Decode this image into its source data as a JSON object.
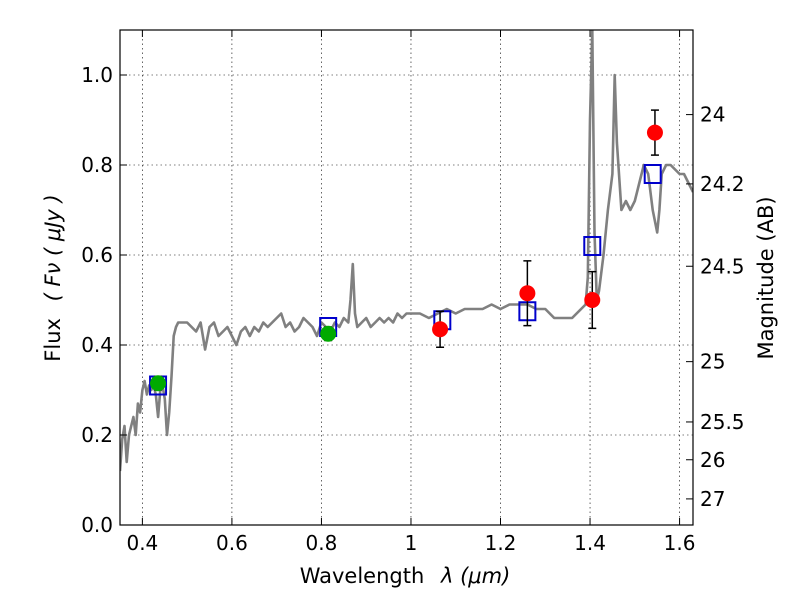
{
  "chart_data": {
    "type": "scatter",
    "xlabel_text": "Wavelength",
    "xlabel_math": "λ (μm)",
    "ylabel_text": "Flux",
    "ylabel_math": "( Fν ( μJy )",
    "y2label": "Magnitude (AB)",
    "xlim": [
      0.35,
      1.63
    ],
    "ylim": [
      0.0,
      1.1
    ],
    "grid": true,
    "xticks": [
      0.4,
      0.6,
      0.8,
      1.0,
      1.2,
      1.4,
      1.6
    ],
    "xtick_labels": [
      "0.4",
      "0.6",
      "0.8",
      "1",
      "1.2",
      "1.4",
      "1.6"
    ],
    "yticks": [
      0.0,
      0.2,
      0.4,
      0.6,
      0.8,
      1.0
    ],
    "ytick_labels": [
      "0.0",
      "0.2",
      "0.4",
      "0.6",
      "0.8",
      "1.0"
    ],
    "y2ticks": [
      {
        "label": "24",
        "flux": 0.912
      },
      {
        "label": "24.2",
        "flux": 0.758
      },
      {
        "label": "24.5",
        "flux": 0.575
      },
      {
        "label": "25",
        "flux": 0.363
      },
      {
        "label": "25.5",
        "flux": 0.229
      },
      {
        "label": "26",
        "flux": 0.145
      },
      {
        "label": "27",
        "flux": 0.058
      }
    ],
    "series": [
      {
        "kind": "line",
        "color": "#808080",
        "x": [
          0.35,
          0.355,
          0.36,
          0.365,
          0.37,
          0.375,
          0.38,
          0.385,
          0.39,
          0.395,
          0.4,
          0.405,
          0.41,
          0.415,
          0.42,
          0.425,
          0.43,
          0.435,
          0.44,
          0.445,
          0.45,
          0.455,
          0.46,
          0.465,
          0.47,
          0.475,
          0.48,
          0.49,
          0.5,
          0.51,
          0.52,
          0.53,
          0.54,
          0.55,
          0.56,
          0.57,
          0.58,
          0.59,
          0.6,
          0.61,
          0.62,
          0.63,
          0.64,
          0.65,
          0.66,
          0.67,
          0.68,
          0.69,
          0.7,
          0.71,
          0.72,
          0.73,
          0.74,
          0.75,
          0.76,
          0.77,
          0.78,
          0.79,
          0.8,
          0.81,
          0.82,
          0.83,
          0.84,
          0.85,
          0.86,
          0.865,
          0.87,
          0.875,
          0.88,
          0.89,
          0.9,
          0.91,
          0.92,
          0.93,
          0.94,
          0.95,
          0.96,
          0.97,
          0.98,
          0.99,
          1.0,
          1.02,
          1.04,
          1.06,
          1.08,
          1.1,
          1.12,
          1.14,
          1.16,
          1.18,
          1.2,
          1.22,
          1.24,
          1.26,
          1.28,
          1.3,
          1.32,
          1.34,
          1.36,
          1.38,
          1.39,
          1.395,
          1.4,
          1.405,
          1.41,
          1.415,
          1.42,
          1.43,
          1.44,
          1.45,
          1.455,
          1.46,
          1.47,
          1.48,
          1.49,
          1.5,
          1.51,
          1.52,
          1.53,
          1.54,
          1.55,
          1.555,
          1.56,
          1.57,
          1.58,
          1.59,
          1.6,
          1.61,
          1.62,
          1.63
        ],
        "y": [
          0.12,
          0.19,
          0.22,
          0.14,
          0.2,
          0.22,
          0.24,
          0.2,
          0.27,
          0.25,
          0.3,
          0.32,
          0.29,
          0.31,
          0.3,
          0.31,
          0.29,
          0.24,
          0.3,
          0.31,
          0.28,
          0.2,
          0.25,
          0.33,
          0.42,
          0.44,
          0.45,
          0.45,
          0.45,
          0.44,
          0.43,
          0.45,
          0.39,
          0.44,
          0.45,
          0.42,
          0.43,
          0.44,
          0.42,
          0.4,
          0.43,
          0.44,
          0.42,
          0.44,
          0.43,
          0.45,
          0.44,
          0.45,
          0.46,
          0.47,
          0.44,
          0.45,
          0.43,
          0.44,
          0.46,
          0.45,
          0.44,
          0.42,
          0.45,
          0.44,
          0.43,
          0.45,
          0.44,
          0.46,
          0.45,
          0.5,
          0.58,
          0.47,
          0.44,
          0.45,
          0.46,
          0.44,
          0.45,
          0.46,
          0.45,
          0.46,
          0.45,
          0.47,
          0.46,
          0.47,
          0.47,
          0.47,
          0.46,
          0.47,
          0.48,
          0.47,
          0.48,
          0.48,
          0.48,
          0.49,
          0.48,
          0.49,
          0.49,
          0.49,
          0.48,
          0.48,
          0.46,
          0.46,
          0.46,
          0.48,
          0.49,
          0.55,
          0.9,
          1.1,
          0.65,
          0.5,
          0.52,
          0.6,
          0.7,
          0.78,
          1.0,
          0.85,
          0.7,
          0.72,
          0.7,
          0.72,
          0.76,
          0.8,
          0.78,
          0.7,
          0.65,
          0.7,
          0.78,
          0.8,
          0.8,
          0.79,
          0.78,
          0.78,
          0.76,
          0.74
        ]
      },
      {
        "kind": "open-square",
        "color": "#0000cc",
        "x": [
          0.435,
          0.815,
          1.07,
          1.26,
          1.405,
          1.54
        ],
        "y": [
          0.31,
          0.44,
          0.455,
          0.475,
          0.62,
          0.78
        ]
      },
      {
        "kind": "filled-circle-errorbar",
        "color": "#00aa00",
        "x": [
          0.435,
          0.815
        ],
        "y": [
          0.315,
          0.425
        ],
        "yerr": [
          0.015,
          0.015
        ]
      },
      {
        "kind": "filled-circle-errorbar",
        "color": "#ff0000",
        "x": [
          1.065,
          1.26,
          1.405,
          1.545
        ],
        "y": [
          0.435,
          0.515,
          0.5,
          0.872
        ],
        "yerr": [
          0.04,
          0.072,
          0.063,
          0.05
        ]
      }
    ]
  }
}
